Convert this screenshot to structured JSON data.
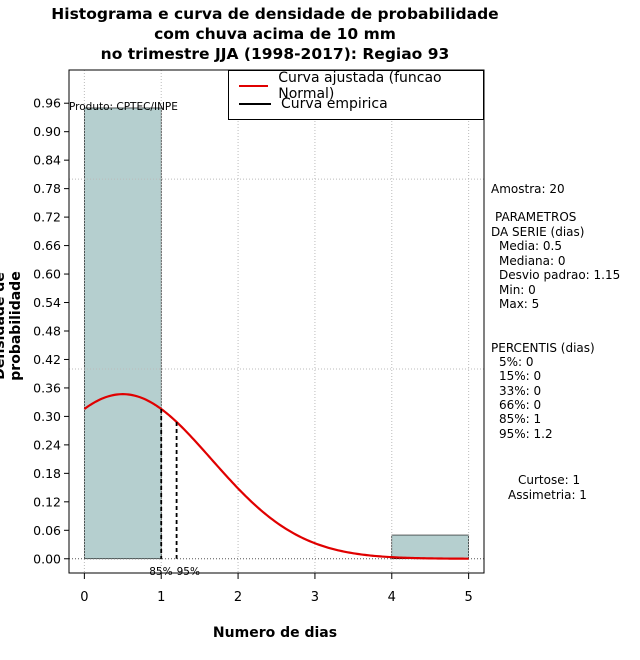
{
  "title_lines": [
    "Histograma e curva de densidade de probabilidade",
    "com chuva acima de 10 mm",
    "no trimestre JJA (1998-2017): Regiao 93"
  ],
  "legend": [
    {
      "label": "Curva ajustada (funcao Normal)",
      "color": "#e00000"
    },
    {
      "label": "Curva empirica",
      "color": "#000000"
    }
  ],
  "product_label": "Produto: CPTEC/INPE",
  "side_panel": {
    "amostra": "Amostra: 20",
    "parametros_title_1": "PARAMETROS",
    "parametros_title_2": "DA SERIE (dias)",
    "media": "Media: 0.5",
    "mediana": "Mediana: 0",
    "desvio": "Desvio padrao: 1.15",
    "min": "Min: 0",
    "max": "Max: 5",
    "percentis_title": "PERCENTIS (dias)",
    "p5": "5%: 0",
    "p15": "15%: 0",
    "p33": "33%: 0",
    "p66": "66%: 0",
    "p85": "85%: 1",
    "p95": "95%: 1.2",
    "curtose": "Curtose: 1",
    "assimetria": "Assimetria: 1"
  },
  "chart_data": {
    "type": "histogram",
    "xlabel": "Numero de dias",
    "ylabel": "Densidade de probabilidade",
    "xlim": [
      -0.2,
      5.2
    ],
    "ylim": [
      -0.03,
      1.03
    ],
    "x_ticks": [
      0,
      1,
      2,
      3,
      4,
      5
    ],
    "y_ticks": [
      "0.00",
      "0.06",
      "0.12",
      "0.18",
      "0.24",
      "0.30",
      "0.36",
      "0.42",
      "0.48",
      "0.54",
      "0.60",
      "0.66",
      "0.72",
      "0.78",
      "0.84",
      "0.90",
      "0.96"
    ],
    "grid_x": [
      0,
      1,
      2,
      3,
      4,
      5
    ],
    "grid_y": [
      0.0,
      0.4,
      0.8
    ],
    "bins": [
      {
        "x0": 0,
        "x1": 1,
        "density": 0.95
      },
      {
        "x0": 1,
        "x1": 2,
        "density": 0.0
      },
      {
        "x0": 2,
        "x1": 3,
        "density": 0.0
      },
      {
        "x0": 3,
        "x1": 4,
        "density": 0.0
      },
      {
        "x0": 4,
        "x1": 5,
        "density": 0.05
      }
    ],
    "bar_color": "#b5cfcf",
    "normal_fit": {
      "mean": 0.5,
      "sd": 1.15,
      "color": "#e00000"
    },
    "percentile_markers": [
      {
        "label": "85%",
        "x": 1.0
      },
      {
        "label": "95%",
        "x": 1.2
      }
    ]
  }
}
